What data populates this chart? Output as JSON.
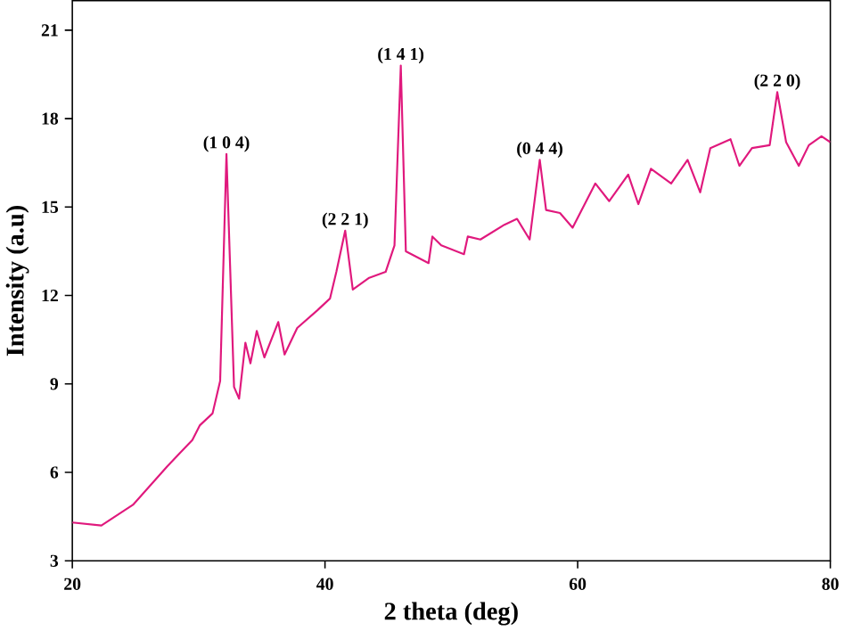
{
  "chart_data": {
    "type": "line",
    "xlabel": "2 theta (deg)",
    "ylabel": "Intensity (a.u)",
    "xlim": [
      20,
      80
    ],
    "ylim": [
      3,
      22
    ],
    "xticks": [
      20,
      40,
      60,
      80
    ],
    "yticks": [
      3,
      6,
      9,
      12,
      15,
      18,
      21
    ],
    "grid": false,
    "marker": "none",
    "line_style": "solid",
    "series": [
      {
        "color": "#e0197d",
        "x": [
          20,
          22.3,
          24.8,
          27.5,
          29.5,
          30.1,
          31.1,
          31.7,
          32.2,
          32.8,
          33.2,
          33.7,
          34.1,
          34.6,
          35.2,
          36.3,
          36.8,
          37.8,
          39.4,
          40.4,
          40.9,
          41.6,
          42.2,
          43.5,
          44.8,
          45.5,
          46.0,
          46.4,
          48.2,
          48.5,
          49.2,
          51.0,
          51.3,
          52.3,
          54.2,
          55.2,
          56.2,
          57.0,
          57.5,
          58.6,
          59.6,
          61.4,
          62.5,
          64.0,
          64.8,
          65.8,
          67.4,
          68.7,
          69.7,
          70.5,
          72.1,
          72.8,
          73.8,
          75.2,
          75.8,
          76.5,
          77.5,
          78.3,
          79.3,
          80.0
        ],
        "values": [
          4.3,
          4.2,
          4.9,
          6.2,
          7.1,
          7.6,
          8.0,
          9.1,
          16.8,
          8.9,
          8.5,
          10.4,
          9.7,
          10.8,
          9.9,
          11.1,
          10.0,
          10.9,
          11.5,
          11.9,
          12.8,
          14.2,
          12.2,
          12.6,
          12.8,
          13.7,
          19.8,
          13.5,
          13.1,
          14.0,
          13.7,
          13.4,
          14.0,
          13.9,
          14.4,
          14.6,
          13.9,
          16.6,
          14.9,
          14.8,
          14.3,
          15.8,
          15.2,
          16.1,
          15.1,
          16.3,
          15.8,
          16.6,
          15.5,
          17.0,
          17.3,
          16.4,
          17.0,
          17.1,
          18.9,
          17.2,
          16.4,
          17.1,
          17.4,
          17.2
        ]
      }
    ],
    "annotations": [
      {
        "text": "(1 0 4)",
        "x": 32.2,
        "y": 16.8
      },
      {
        "text": "(2 2 1)",
        "x": 41.6,
        "y": 14.2
      },
      {
        "text": "(1 4 1)",
        "x": 46.0,
        "y": 19.8
      },
      {
        "text": "(0 4 4)",
        "x": 57.0,
        "y": 16.6
      },
      {
        "text": "(2 2 0)",
        "x": 75.8,
        "y": 18.9
      }
    ]
  }
}
